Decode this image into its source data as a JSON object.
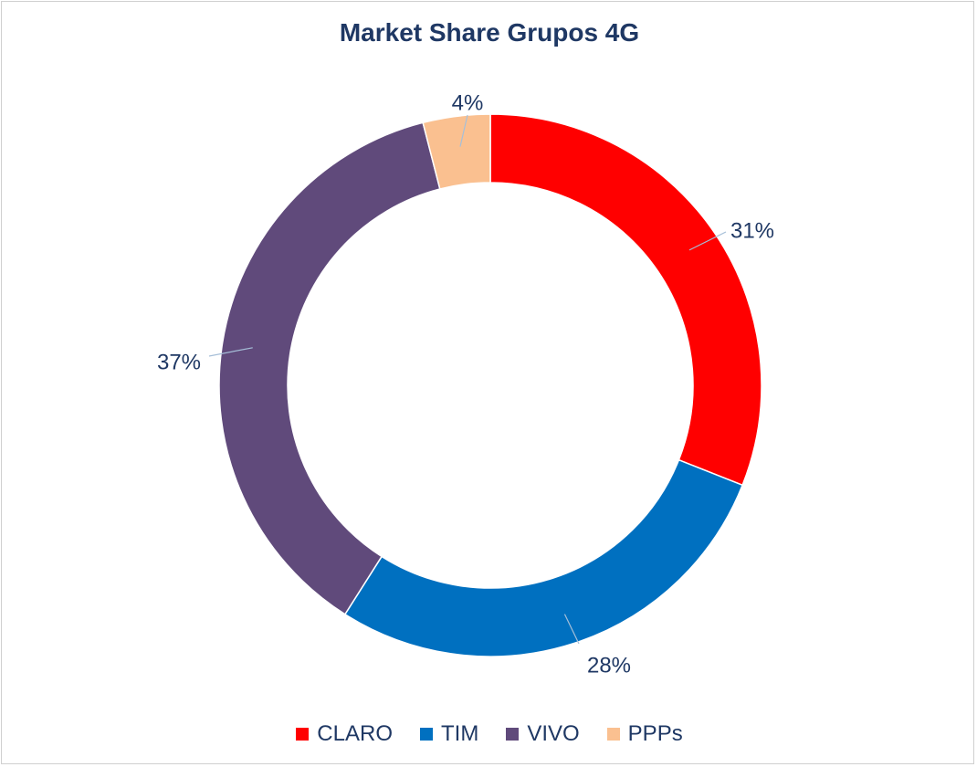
{
  "chart_data": {
    "type": "pie",
    "title": "Market Share Grupos 4G",
    "donut": true,
    "legend_position": "bottom",
    "categories": [
      "CLARO",
      "TIM",
      "VIVO",
      "PPPs"
    ],
    "values": [
      31,
      28,
      37,
      4
    ],
    "labels": [
      "31%",
      "28%",
      "37%",
      "4%"
    ],
    "colors": [
      "#ff0000",
      "#0070c0",
      "#604a7b",
      "#fac090"
    ]
  }
}
